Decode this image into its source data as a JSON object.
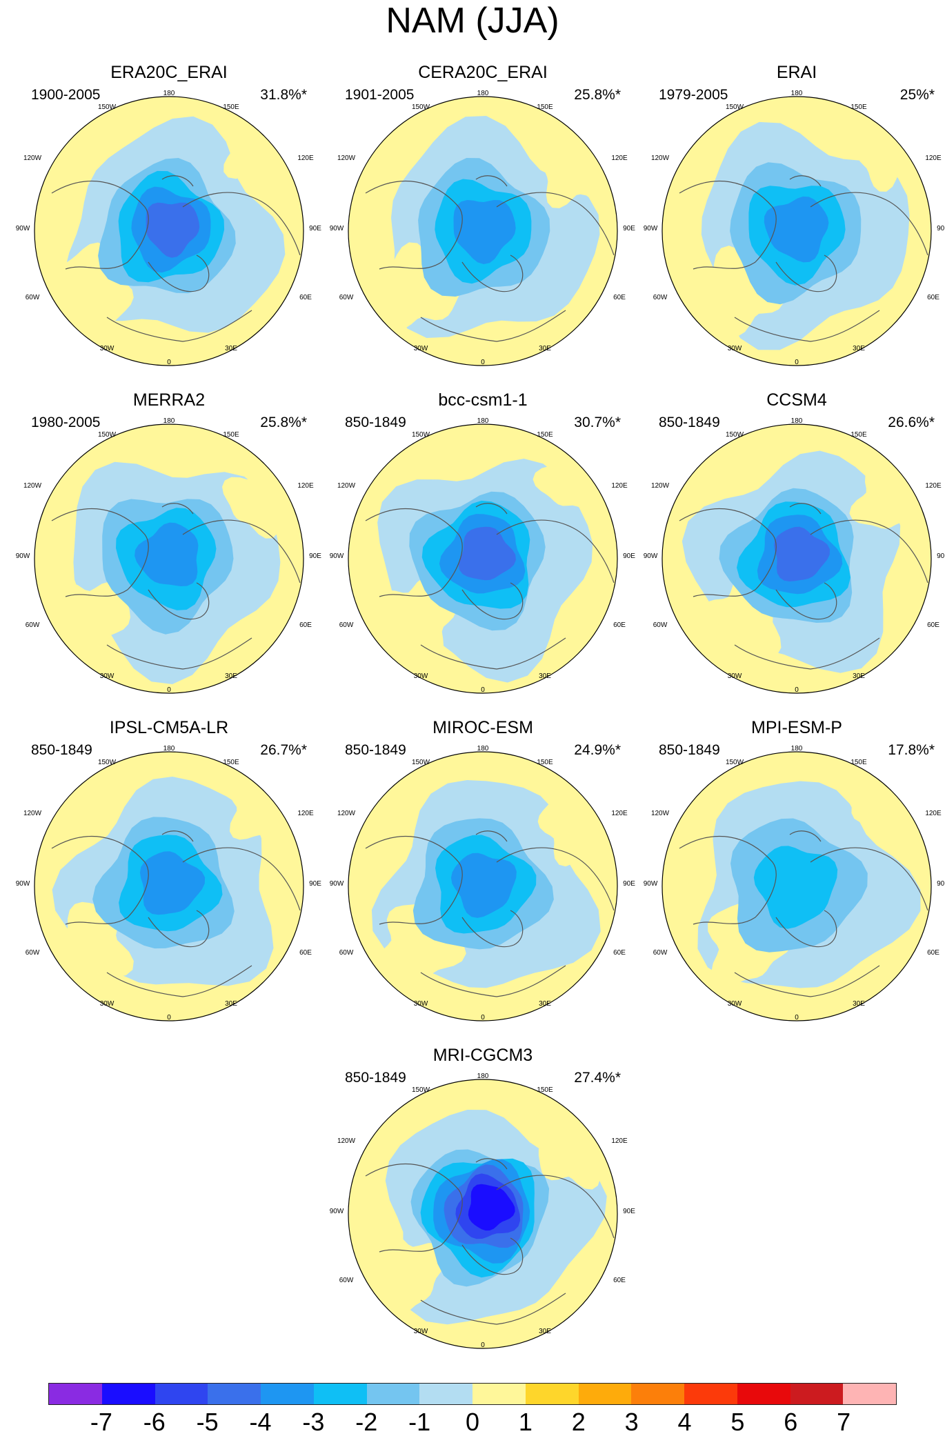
{
  "title": "NAM (JJA)",
  "chart_data": {
    "type": "heatmap",
    "title": "NAM (JJA)",
    "projection": "north polar stereographic",
    "longitude_labels": [
      "180",
      "150W",
      "150E",
      "120W",
      "120E",
      "90W",
      "90E",
      "60W",
      "60E",
      "30W",
      "30E",
      "0"
    ],
    "panels": [
      {
        "name": "ERA20C_ERAI",
        "period": "1900-2005",
        "variance": "31.8%*",
        "center_min": -4
      },
      {
        "name": "CERA20C_ERAI",
        "period": "1901-2005",
        "variance": "25.8%*",
        "center_min": -3
      },
      {
        "name": "ERAI",
        "period": "1979-2005",
        "variance": "25%*",
        "center_min": -3
      },
      {
        "name": "MERRA2",
        "period": "1980-2005",
        "variance": "25.8%*",
        "center_min": -3
      },
      {
        "name": "bcc-csm1-1",
        "period": "850-1849",
        "variance": "30.7%*",
        "center_min": -4
      },
      {
        "name": "CCSM4",
        "period": "850-1849",
        "variance": "26.6%*",
        "center_min": -4
      },
      {
        "name": "IPSL-CM5A-LR",
        "period": "850-1849",
        "variance": "26.7%*",
        "center_min": -3
      },
      {
        "name": "MIROC-ESM",
        "period": "850-1849",
        "variance": "24.9%*",
        "center_min": -3
      },
      {
        "name": "MPI-ESM-P",
        "period": "850-1849",
        "variance": "17.8%*",
        "center_min": -2
      },
      {
        "name": "MRI-CGCM3",
        "period": "850-1849",
        "variance": "27.4%*",
        "center_min": -6
      }
    ],
    "colorbar": {
      "ticks": [
        "-7",
        "-6",
        "-5",
        "-4",
        "-3",
        "-2",
        "-1",
        "0",
        "1",
        "2",
        "3",
        "4",
        "5",
        "6",
        "7"
      ],
      "colors": [
        "#8a2be2",
        "#1a0dff",
        "#2f45f0",
        "#3a70eb",
        "#1e96f2",
        "#0fbff5",
        "#74c5f0",
        "#b3ddf2",
        "#fff79a",
        "#fed62b",
        "#feab0b",
        "#fc7f0a",
        "#fc3a0a",
        "#e8090b",
        "#cc1b1f",
        "#feb4b4"
      ]
    }
  }
}
